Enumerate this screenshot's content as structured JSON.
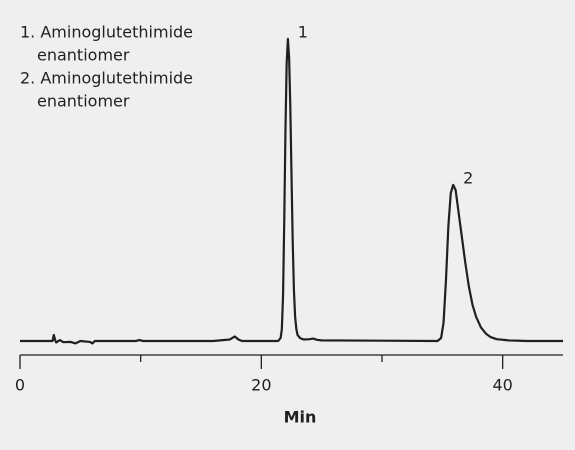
{
  "chart_data": {
    "type": "line",
    "peak_names": [
      [
        "1. Aminoglutethimide",
        "enantiomer"
      ],
      [
        "2. Aminoglutethimide",
        "enantiomer"
      ]
    ],
    "annotations": [
      "1",
      "2"
    ],
    "xlabel": "Min",
    "xlim": [
      0,
      45
    ],
    "xticks": [
      0,
      20,
      40
    ],
    "minor_xticks": [
      10,
      30
    ],
    "ylim": [
      0,
      100
    ],
    "x": [
      0,
      2.7,
      2.8,
      2.9,
      3.0,
      3.3,
      3.6,
      4.2,
      4.6,
      5.0,
      5.8,
      6.0,
      6.2,
      8,
      9.6,
      9.9,
      10.2,
      16,
      17.4,
      17.8,
      18.1,
      18.4,
      20,
      21.4,
      21.6,
      21.7,
      21.8,
      21.9,
      22.0,
      22.1,
      22.2,
      22.3,
      22.4,
      22.5,
      22.6,
      22.7,
      22.8,
      22.9,
      23.0,
      23.2,
      23.5,
      24.0,
      24.3,
      24.6,
      25,
      34.6,
      34.9,
      35.1,
      35.3,
      35.5,
      35.7,
      35.9,
      36.1,
      36.3,
      36.6,
      36.9,
      37.2,
      37.5,
      37.8,
      38.2,
      38.6,
      39,
      39.5,
      40.5,
      42,
      45
    ],
    "series": [
      {
        "color": "#231f20",
        "values": [
          0,
          0,
          2,
          0.5,
          -0.5,
          0.3,
          -0.4,
          -0.3,
          -0.8,
          0,
          -0.3,
          -0.8,
          0,
          0,
          0,
          0.3,
          0,
          0,
          0.5,
          1.5,
          0.5,
          0,
          0,
          0,
          1,
          4,
          15,
          40,
          70,
          92,
          100,
          94,
          78,
          55,
          33,
          17,
          8,
          4,
          2,
          1,
          0.5,
          0.6,
          0.8,
          0.4,
          0.2,
          0,
          1,
          6,
          20,
          38,
          49,
          51.7,
          50,
          44,
          35,
          26,
          18,
          12,
          8,
          4.5,
          2.5,
          1.3,
          0.6,
          0.2,
          0,
          0
        ]
      }
    ]
  }
}
